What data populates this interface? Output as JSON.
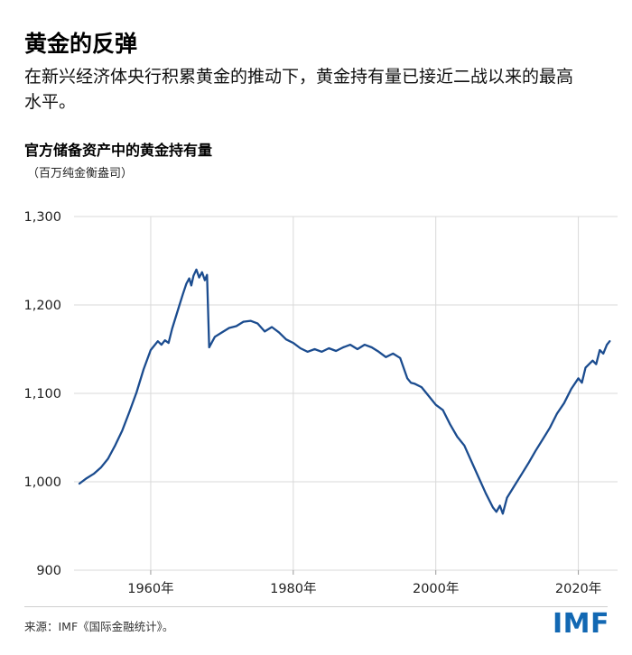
{
  "header": {
    "title": "黄金的反弹",
    "subtitle": "在新兴经济体央行积累黄金的推动下，黄金持有量已接近二战以来的最高水平。"
  },
  "chart": {
    "heading": "官方储备资产中的黄金持有量",
    "unit": "（百万纯金衡盎司）"
  },
  "chart_data": {
    "type": "line",
    "title": "官方储备资产中的黄金持有量",
    "unit_label": "（百万纯金衡盎司）",
    "x": [
      1950,
      1951,
      1952,
      1953,
      1954,
      1955,
      1956,
      1957,
      1958,
      1959,
      1960,
      1961,
      1961.5,
      1962,
      1962.5,
      1963,
      1964,
      1964.5,
      1965,
      1965.4,
      1965.7,
      1966,
      1966.4,
      1966.8,
      1967.2,
      1967.6,
      1967.9,
      1968.2,
      1968.6,
      1969,
      1970,
      1971,
      1972,
      1973,
      1974,
      1975,
      1976,
      1977,
      1978,
      1979,
      1980,
      1981,
      1982,
      1983,
      1984,
      1985,
      1986,
      1987,
      1988,
      1989,
      1990,
      1991,
      1992,
      1993,
      1994,
      1995,
      1996,
      1996.5,
      1997,
      1998,
      1999,
      2000,
      2001,
      2002,
      2003,
      2004,
      2005,
      2006,
      2007,
      2008,
      2008.5,
      2009,
      2009.4,
      2010,
      2011,
      2012,
      2013,
      2014,
      2015,
      2016,
      2017,
      2018,
      2019,
      2020,
      2020.5,
      2021,
      2022,
      2022.5,
      2023,
      2023.5,
      2024,
      2024.4
    ],
    "values": [
      998,
      1004,
      1009,
      1016,
      1026,
      1041,
      1058,
      1079,
      1101,
      1127,
      1149,
      1159,
      1155,
      1160,
      1157,
      1173,
      1199,
      1212,
      1224,
      1230,
      1222,
      1233,
      1240,
      1231,
      1237,
      1228,
      1234,
      1152,
      1158,
      1164,
      1169,
      1174,
      1176,
      1181,
      1182,
      1179,
      1170,
      1175,
      1169,
      1161,
      1157,
      1151,
      1147,
      1150,
      1147,
      1151,
      1148,
      1152,
      1155,
      1150,
      1155,
      1152,
      1147,
      1141,
      1145,
      1140,
      1117,
      1112,
      1111,
      1107,
      1097,
      1087,
      1081,
      1065,
      1051,
      1041,
      1023,
      1005,
      987,
      971,
      966,
      973,
      964,
      982,
      995,
      1008,
      1021,
      1035,
      1048,
      1061,
      1077,
      1089,
      1105,
      1117,
      1112,
      1129,
      1137,
      1133,
      1149,
      1145,
      1155,
      1159
    ],
    "xlim": [
      1950,
      2025.5
    ],
    "ylim": [
      900,
      1300
    ],
    "y_ticks": [
      900,
      1000,
      1100,
      1200,
      1300
    ],
    "y_tick_labels": [
      "900",
      "1,000",
      "1,100",
      "1,200",
      "1,300"
    ],
    "x_ticks": [
      1960,
      1980,
      2000,
      2020
    ],
    "x_tick_labels": [
      "1960年",
      "1980年",
      "2000年",
      "2020年"
    ],
    "grid": true,
    "legend": "none",
    "line_color": "#1b4c8f"
  },
  "footer": {
    "source": "来源：IMF《国际金融统计》。",
    "logo": "IMF"
  },
  "colors": {
    "line": "#1b4c8f",
    "logo_blue": "#1268b3",
    "grid": "#d9d9d9",
    "tick": "#9a9a9a",
    "axis_text": "#222222"
  }
}
